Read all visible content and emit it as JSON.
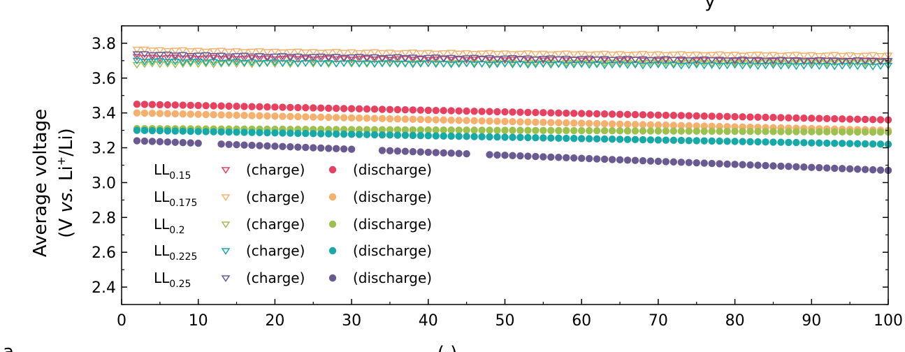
{
  "partial_text": {
    "top_right": "y",
    "bottom_left": "a",
    "bottom_center": "( )"
  },
  "chart_data": {
    "type": "scatter",
    "title": "",
    "xlabel": "",
    "ylabel_line1": "Average voltage",
    "ylabel_line2_prefix": "(V ",
    "ylabel_line2_italic": "vs.",
    "ylabel_line2_mid": " Li",
    "ylabel_line2_sup": "+",
    "ylabel_line2_suffix": "/Li)",
    "xlim": [
      0,
      100
    ],
    "ylim": [
      2.3,
      3.9
    ],
    "x_ticks": [
      0,
      10,
      20,
      30,
      40,
      50,
      60,
      70,
      80,
      90,
      100
    ],
    "x_tick_labels": [
      "0",
      "10",
      "20",
      "30",
      "40",
      "50",
      "60",
      "70",
      "80",
      "90",
      "100"
    ],
    "y_ticks": [
      2.4,
      2.6,
      2.8,
      3.0,
      3.2,
      3.4,
      3.6,
      3.8
    ],
    "y_tick_labels": [
      "2.4",
      "2.6",
      "2.8",
      "3.0",
      "3.2",
      "3.4",
      "3.6",
      "3.8"
    ],
    "grid": false,
    "legend_position": "bottom-left",
    "legend": {
      "charge_label": "(charge)",
      "discharge_label": "(discharge)"
    },
    "series": [
      {
        "sample_base": "LL",
        "sample_sub": "0.15",
        "color": "#e8405f",
        "charge": {
          "start": 3.72,
          "end": 3.7
        },
        "discharge": {
          "start": 3.45,
          "end": 3.36
        }
      },
      {
        "sample_base": "LL",
        "sample_sub": "0.175",
        "color": "#f5b06e",
        "charge": {
          "start": 3.765,
          "end": 3.73
        },
        "discharge": {
          "start": 3.4,
          "end": 3.3
        }
      },
      {
        "sample_base": "LL",
        "sample_sub": "0.2",
        "color": "#9dc04e",
        "charge": {
          "start": 3.68,
          "end": 3.69
        },
        "discharge": {
          "start": 3.31,
          "end": 3.29
        }
      },
      {
        "sample_base": "LL",
        "sample_sub": "0.225",
        "color": "#16a9a8",
        "charge": {
          "start": 3.7,
          "end": 3.67
        },
        "discharge": {
          "start": 3.3,
          "end": 3.22
        }
      },
      {
        "sample_base": "LL",
        "sample_sub": "0.25",
        "color": "#6a5a92",
        "charge": {
          "start": 3.74,
          "end": 3.7
        },
        "discharge": {
          "start": 3.24,
          "end": 3.07
        }
      }
    ],
    "discharge_gaps_cycles": [
      11,
      12,
      31,
      32,
      33,
      46,
      47
    ]
  }
}
